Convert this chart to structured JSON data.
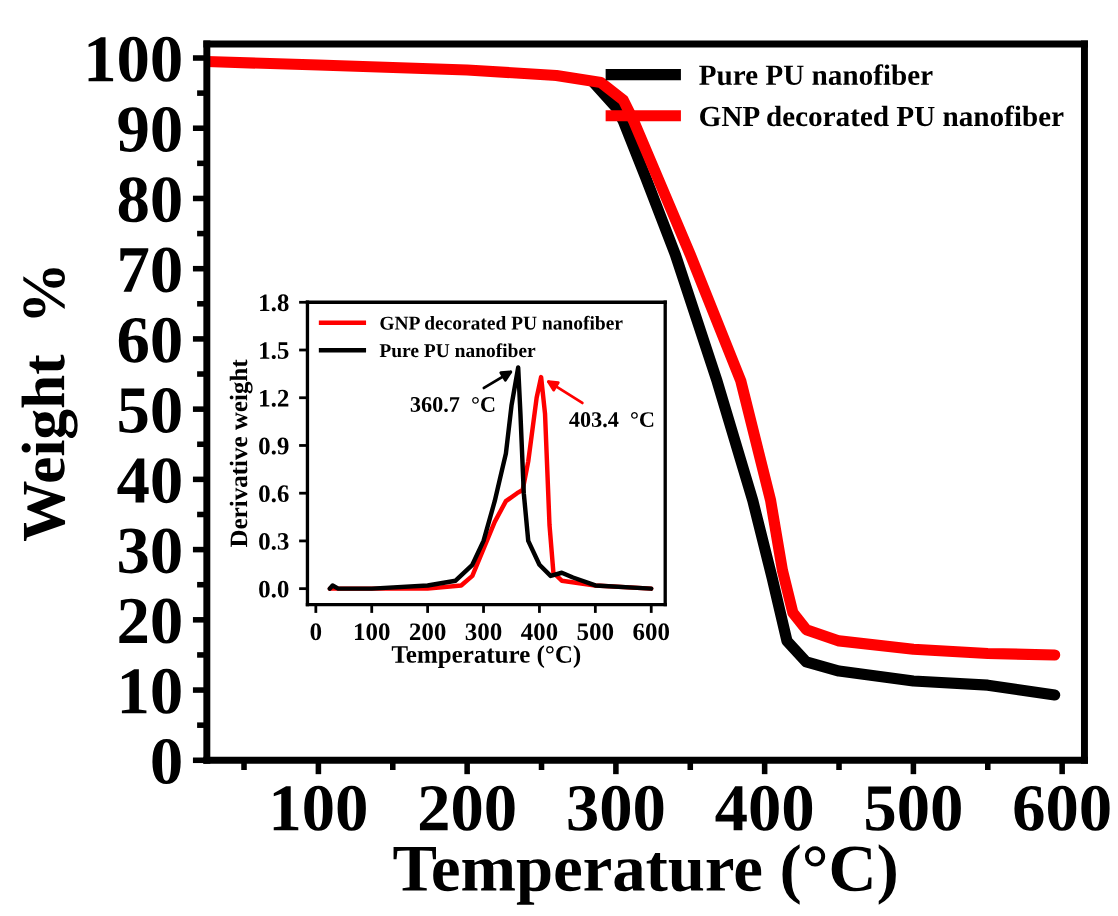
{
  "chart_data": [
    {
      "type": "line",
      "xlabel": "Temperature (°C)",
      "ylabel": "Weight  %",
      "xlim": [
        25,
        615
      ],
      "ylim": [
        0,
        102
      ],
      "xticks": [
        {
          "value": 50,
          "label": null
        },
        100,
        {
          "value": 150,
          "label": null
        },
        200,
        {
          "value": 250,
          "label": null
        },
        300,
        {
          "value": 350,
          "label": null
        },
        400,
        {
          "value": 450,
          "label": null
        },
        500,
        {
          "value": 550,
          "label": null
        },
        600
      ],
      "yticks": [
        0,
        {
          "value": 5,
          "label": null
        },
        10,
        {
          "value": 15,
          "label": null
        },
        20,
        {
          "value": 25,
          "label": null
        },
        30,
        {
          "value": 35,
          "label": null
        },
        40,
        {
          "value": 45,
          "label": null
        },
        50,
        {
          "value": 55,
          "label": null
        },
        60,
        {
          "value": 65,
          "label": null
        },
        70,
        {
          "value": 75,
          "label": null
        },
        80,
        {
          "value": 85,
          "label": null
        },
        90,
        {
          "value": 95,
          "label": null
        },
        100
      ],
      "grid": false,
      "legend": "top right",
      "marker": "none",
      "line_style": "solid",
      "series": [
        {
          "name": "Pure PU nanofiber",
          "color": "#000000",
          "x": [
            285,
            300,
            305,
            320,
            340,
            368,
            392,
            405,
            415,
            428,
            450,
            500,
            550,
            595
          ],
          "values": [
            96.5,
            93,
            91,
            83,
            72,
            54,
            37,
            26,
            17,
            14,
            12.7,
            11.3,
            10.7,
            9.3
          ]
        },
        {
          "name": "GNP decorated PU nanofiber",
          "color": "#ff0000",
          "x": [
            25,
            100,
            200,
            260,
            290,
            305,
            312,
            330,
            350,
            384,
            404,
            412,
            419,
            428,
            450,
            500,
            550,
            595
          ],
          "values": [
            99.5,
            99,
            98.3,
            97.5,
            96.5,
            94,
            91,
            82,
            72,
            54,
            37,
            27,
            21,
            18.6,
            17,
            15.8,
            15.2,
            15
          ]
        }
      ]
    },
    {
      "type": "line",
      "xlabel": "Temperature (°C)",
      "ylabel": "Derivative weight",
      "xlim": [
        -15,
        625
      ],
      "ylim": [
        -0.1,
        1.8
      ],
      "xticks": [
        0,
        100,
        200,
        300,
        400,
        500,
        600
      ],
      "yticks": [
        {
          "value": 0,
          "label": "0.0"
        },
        0.3,
        0.6,
        0.9,
        1.2,
        1.5,
        1.8
      ],
      "grid": false,
      "legend": "top left",
      "marker": "none",
      "line_style": "solid",
      "annotations": [
        {
          "text": "360.7  °C",
          "x": 362,
          "y": 1.39
        },
        {
          "text": "403.4  °C",
          "x": 403,
          "y": 1.33
        }
      ],
      "series": [
        {
          "name": "GNP decorated PU nanofiber",
          "color": "#ff0000",
          "x": [
            25,
            200,
            260,
            280,
            300,
            320,
            340,
            360,
            370,
            380,
            395,
            403,
            410,
            418,
            425,
            440,
            500,
            600
          ],
          "values": [
            0,
            0,
            0.02,
            0.08,
            0.25,
            0.42,
            0.55,
            0.6,
            0.62,
            0.8,
            1.2,
            1.33,
            1.1,
            0.4,
            0.1,
            0.05,
            0.02,
            0
          ]
        },
        {
          "name": "Pure PU nanofiber",
          "color": "#000000",
          "x": [
            25,
            30,
            40,
            100,
            200,
            250,
            280,
            300,
            320,
            330,
            340,
            350,
            362,
            366,
            372,
            380,
            400,
            420,
            440,
            460,
            500,
            600
          ],
          "values": [
            0,
            0.02,
            0,
            0,
            0.02,
            0.05,
            0.15,
            0.3,
            0.55,
            0.7,
            0.85,
            1.15,
            1.39,
            1.1,
            0.6,
            0.3,
            0.15,
            0.08,
            0.1,
            0.07,
            0.02,
            0
          ]
        }
      ]
    }
  ]
}
